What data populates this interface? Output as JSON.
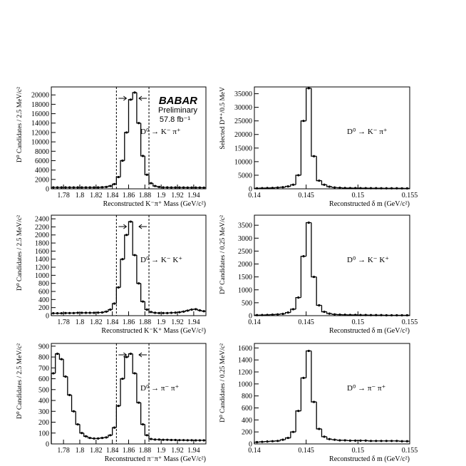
{
  "chart_data": [
    {
      "type": "histogram",
      "ylabel": "D⁰ Candidates / 2.5 MeV/c²",
      "xlabel": "Reconstructed K⁻π⁺ Mass (GeV/c²)",
      "annotation": "D⁰ → K⁻ π⁺",
      "logo": "BABAR",
      "preliminary": "Preliminary",
      "luminosity": "57.8 fb⁻¹",
      "color": "#000000",
      "bins": [
        1.765,
        1.77,
        1.775,
        1.78,
        1.785,
        1.79,
        1.795,
        1.8,
        1.805,
        1.81,
        1.815,
        1.82,
        1.825,
        1.83,
        1.835,
        1.84,
        1.845,
        1.85,
        1.855,
        1.86,
        1.865,
        1.87,
        1.875,
        1.88,
        1.885,
        1.89,
        1.895,
        1.9,
        1.905,
        1.91,
        1.915,
        1.92,
        1.925,
        1.93,
        1.935,
        1.94,
        1.945,
        1.95,
        1.955
      ],
      "values": [
        300,
        300,
        300,
        300,
        300,
        300,
        300,
        300,
        300,
        300,
        300,
        300,
        350,
        400,
        600,
        1000,
        2500,
        6000,
        12000,
        19000,
        20500,
        14000,
        7000,
        3000,
        1200,
        600,
        400,
        300,
        300,
        290,
        290,
        280,
        280,
        270,
        270,
        260,
        260,
        250
      ],
      "xlim": [
        1.765,
        1.955
      ],
      "ylim": [
        0,
        21700
      ],
      "xticks": [
        1.78,
        1.8,
        1.82,
        1.84,
        1.86,
        1.88,
        1.9,
        1.92,
        1.94
      ],
      "yticks": [
        0,
        2000,
        4000,
        6000,
        8000,
        10000,
        12000,
        14000,
        16000,
        18000,
        20000
      ],
      "cut_lines": [
        1.845,
        1.885
      ]
    },
    {
      "type": "histogram",
      "ylabel": "Selected D*⁺/0.5 MeV",
      "xlabel": "Reconstructed δ m (GeV/c²)",
      "annotation": "D⁰ → K⁻ π⁺",
      "color": "#000000",
      "bins": [
        0.14,
        0.1405,
        0.141,
        0.1415,
        0.142,
        0.1425,
        0.143,
        0.1435,
        0.144,
        0.1445,
        0.145,
        0.1455,
        0.146,
        0.1465,
        0.147,
        0.1475,
        0.148,
        0.1485,
        0.149,
        0.1495,
        0.15,
        0.1505,
        0.151,
        0.1515,
        0.152,
        0.1525,
        0.153,
        0.1535,
        0.154,
        0.1545,
        0.155
      ],
      "values": [
        200,
        250,
        300,
        350,
        450,
        600,
        900,
        1500,
        5000,
        25000,
        37000,
        12000,
        3000,
        1500,
        800,
        500,
        400,
        300,
        280,
        260,
        250,
        240,
        230,
        220,
        210,
        200,
        200,
        190,
        180,
        170
      ],
      "xlim": [
        0.14,
        0.155
      ],
      "ylim": [
        0,
        37500
      ],
      "xticks": [
        0.14,
        0.145,
        0.15,
        0.155
      ],
      "yticks": [
        0,
        5000,
        10000,
        15000,
        20000,
        25000,
        30000,
        35000
      ]
    },
    {
      "type": "histogram",
      "ylabel": "D⁰ Candidates / 2.5 MeV/c²",
      "xlabel": "Reconstructed K⁻K⁺ Mass (GeV/c²)",
      "annotation": "D⁰ → K⁻ K⁺",
      "color": "#000000",
      "bins": [
        1.765,
        1.77,
        1.775,
        1.78,
        1.785,
        1.79,
        1.795,
        1.8,
        1.805,
        1.81,
        1.815,
        1.82,
        1.825,
        1.83,
        1.835,
        1.84,
        1.845,
        1.85,
        1.855,
        1.86,
        1.865,
        1.87,
        1.875,
        1.88,
        1.885,
        1.89,
        1.895,
        1.9,
        1.905,
        1.91,
        1.915,
        1.92,
        1.925,
        1.93,
        1.935,
        1.94,
        1.945,
        1.95,
        1.955
      ],
      "values": [
        60,
        60,
        60,
        65,
        65,
        65,
        70,
        70,
        70,
        70,
        70,
        75,
        80,
        100,
        150,
        300,
        700,
        1400,
        2000,
        2330,
        1500,
        800,
        350,
        150,
        90,
        70,
        65,
        65,
        65,
        70,
        75,
        85,
        100,
        125,
        150,
        160,
        130,
        110
      ],
      "xlim": [
        1.765,
        1.955
      ],
      "ylim": [
        0,
        2490
      ],
      "xticks": [
        1.78,
        1.8,
        1.82,
        1.84,
        1.86,
        1.88,
        1.9,
        1.92,
        1.94
      ],
      "yticks": [
        0,
        200,
        400,
        600,
        800,
        1000,
        1200,
        1400,
        1600,
        1800,
        2000,
        2200,
        2400
      ],
      "cut_lines": [
        1.845,
        1.885
      ]
    },
    {
      "type": "histogram",
      "ylabel": "D⁰ Candidates / 0.25 MeV/c²",
      "xlabel": "Reconstructed δ m (GeV/c²)",
      "annotation": "D⁰ → K⁻ K⁺",
      "color": "#000000",
      "bins": [
        0.14,
        0.1405,
        0.141,
        0.1415,
        0.142,
        0.1425,
        0.143,
        0.1435,
        0.144,
        0.1445,
        0.145,
        0.1455,
        0.146,
        0.1465,
        0.147,
        0.1475,
        0.148,
        0.1485,
        0.149,
        0.1495,
        0.15,
        0.1505,
        0.151,
        0.1515,
        0.152,
        0.1525,
        0.153,
        0.1535,
        0.154,
        0.1545,
        0.155
      ],
      "values": [
        20,
        25,
        30,
        40,
        50,
        70,
        120,
        250,
        700,
        2300,
        3600,
        1500,
        400,
        150,
        80,
        50,
        40,
        35,
        30,
        30,
        25,
        25,
        20,
        20,
        20,
        15,
        15,
        15,
        15,
        15
      ],
      "xlim": [
        0.14,
        0.155
      ],
      "ylim": [
        0,
        3890
      ],
      "xticks": [
        0.14,
        0.145,
        0.15,
        0.155
      ],
      "yticks": [
        0,
        500,
        1000,
        1500,
        2000,
        2500,
        3000,
        3500
      ]
    },
    {
      "type": "histogram",
      "ylabel": "D⁰ Candidates / 2.5 MeV/c²",
      "xlabel": "Reconstructed π⁻π⁺ Mass (GeV/c²)",
      "annotation": "D⁰ → π⁻ π⁺",
      "color": "#000000",
      "bins": [
        1.765,
        1.77,
        1.775,
        1.78,
        1.785,
        1.79,
        1.795,
        1.8,
        1.805,
        1.81,
        1.815,
        1.82,
        1.825,
        1.83,
        1.835,
        1.84,
        1.845,
        1.85,
        1.855,
        1.86,
        1.865,
        1.87,
        1.875,
        1.88,
        1.885,
        1.89,
        1.895,
        1.9,
        1.905,
        1.91,
        1.915,
        1.92,
        1.925,
        1.93,
        1.935,
        1.94,
        1.945,
        1.95,
        1.955
      ],
      "values": [
        650,
        830,
        780,
        620,
        450,
        300,
        180,
        100,
        70,
        55,
        50,
        50,
        55,
        60,
        80,
        150,
        350,
        600,
        800,
        830,
        650,
        380,
        180,
        80,
        45,
        40,
        40,
        38,
        38,
        36,
        36,
        35,
        35,
        34,
        34,
        33,
        33,
        33
      ],
      "xlim": [
        1.765,
        1.955
      ],
      "ylim": [
        0,
        925
      ],
      "xticks": [
        1.78,
        1.8,
        1.82,
        1.84,
        1.86,
        1.88,
        1.9,
        1.92,
        1.94
      ],
      "yticks": [
        0,
        100,
        200,
        300,
        400,
        500,
        600,
        700,
        800,
        900
      ],
      "cut_lines": [
        1.845,
        1.885
      ]
    },
    {
      "type": "histogram",
      "ylabel": "D⁰ Candidates / 0.25 MeV/c²",
      "xlabel": "Reconstructed δ m (GeV/c²)",
      "annotation": "D⁰ → π⁻ π⁺",
      "color": "#000000",
      "bins": [
        0.14,
        0.1405,
        0.141,
        0.1415,
        0.142,
        0.1425,
        0.143,
        0.1435,
        0.144,
        0.1445,
        0.145,
        0.1455,
        0.146,
        0.1465,
        0.147,
        0.1475,
        0.148,
        0.1485,
        0.149,
        0.1495,
        0.15,
        0.1505,
        0.151,
        0.1515,
        0.152,
        0.1525,
        0.153,
        0.1535,
        0.154,
        0.1545,
        0.155
      ],
      "values": [
        30,
        35,
        40,
        45,
        50,
        70,
        100,
        200,
        550,
        1100,
        1550,
        700,
        250,
        120,
        80,
        70,
        60,
        60,
        55,
        55,
        55,
        55,
        50,
        50,
        50,
        50,
        50,
        50,
        45,
        45
      ],
      "xlim": [
        0.14,
        0.155
      ],
      "ylim": [
        0,
        1675
      ],
      "xticks": [
        0.14,
        0.145,
        0.15,
        0.155
      ],
      "yticks": [
        0,
        200,
        400,
        600,
        800,
        1000,
        1200,
        1400,
        1600
      ]
    }
  ]
}
